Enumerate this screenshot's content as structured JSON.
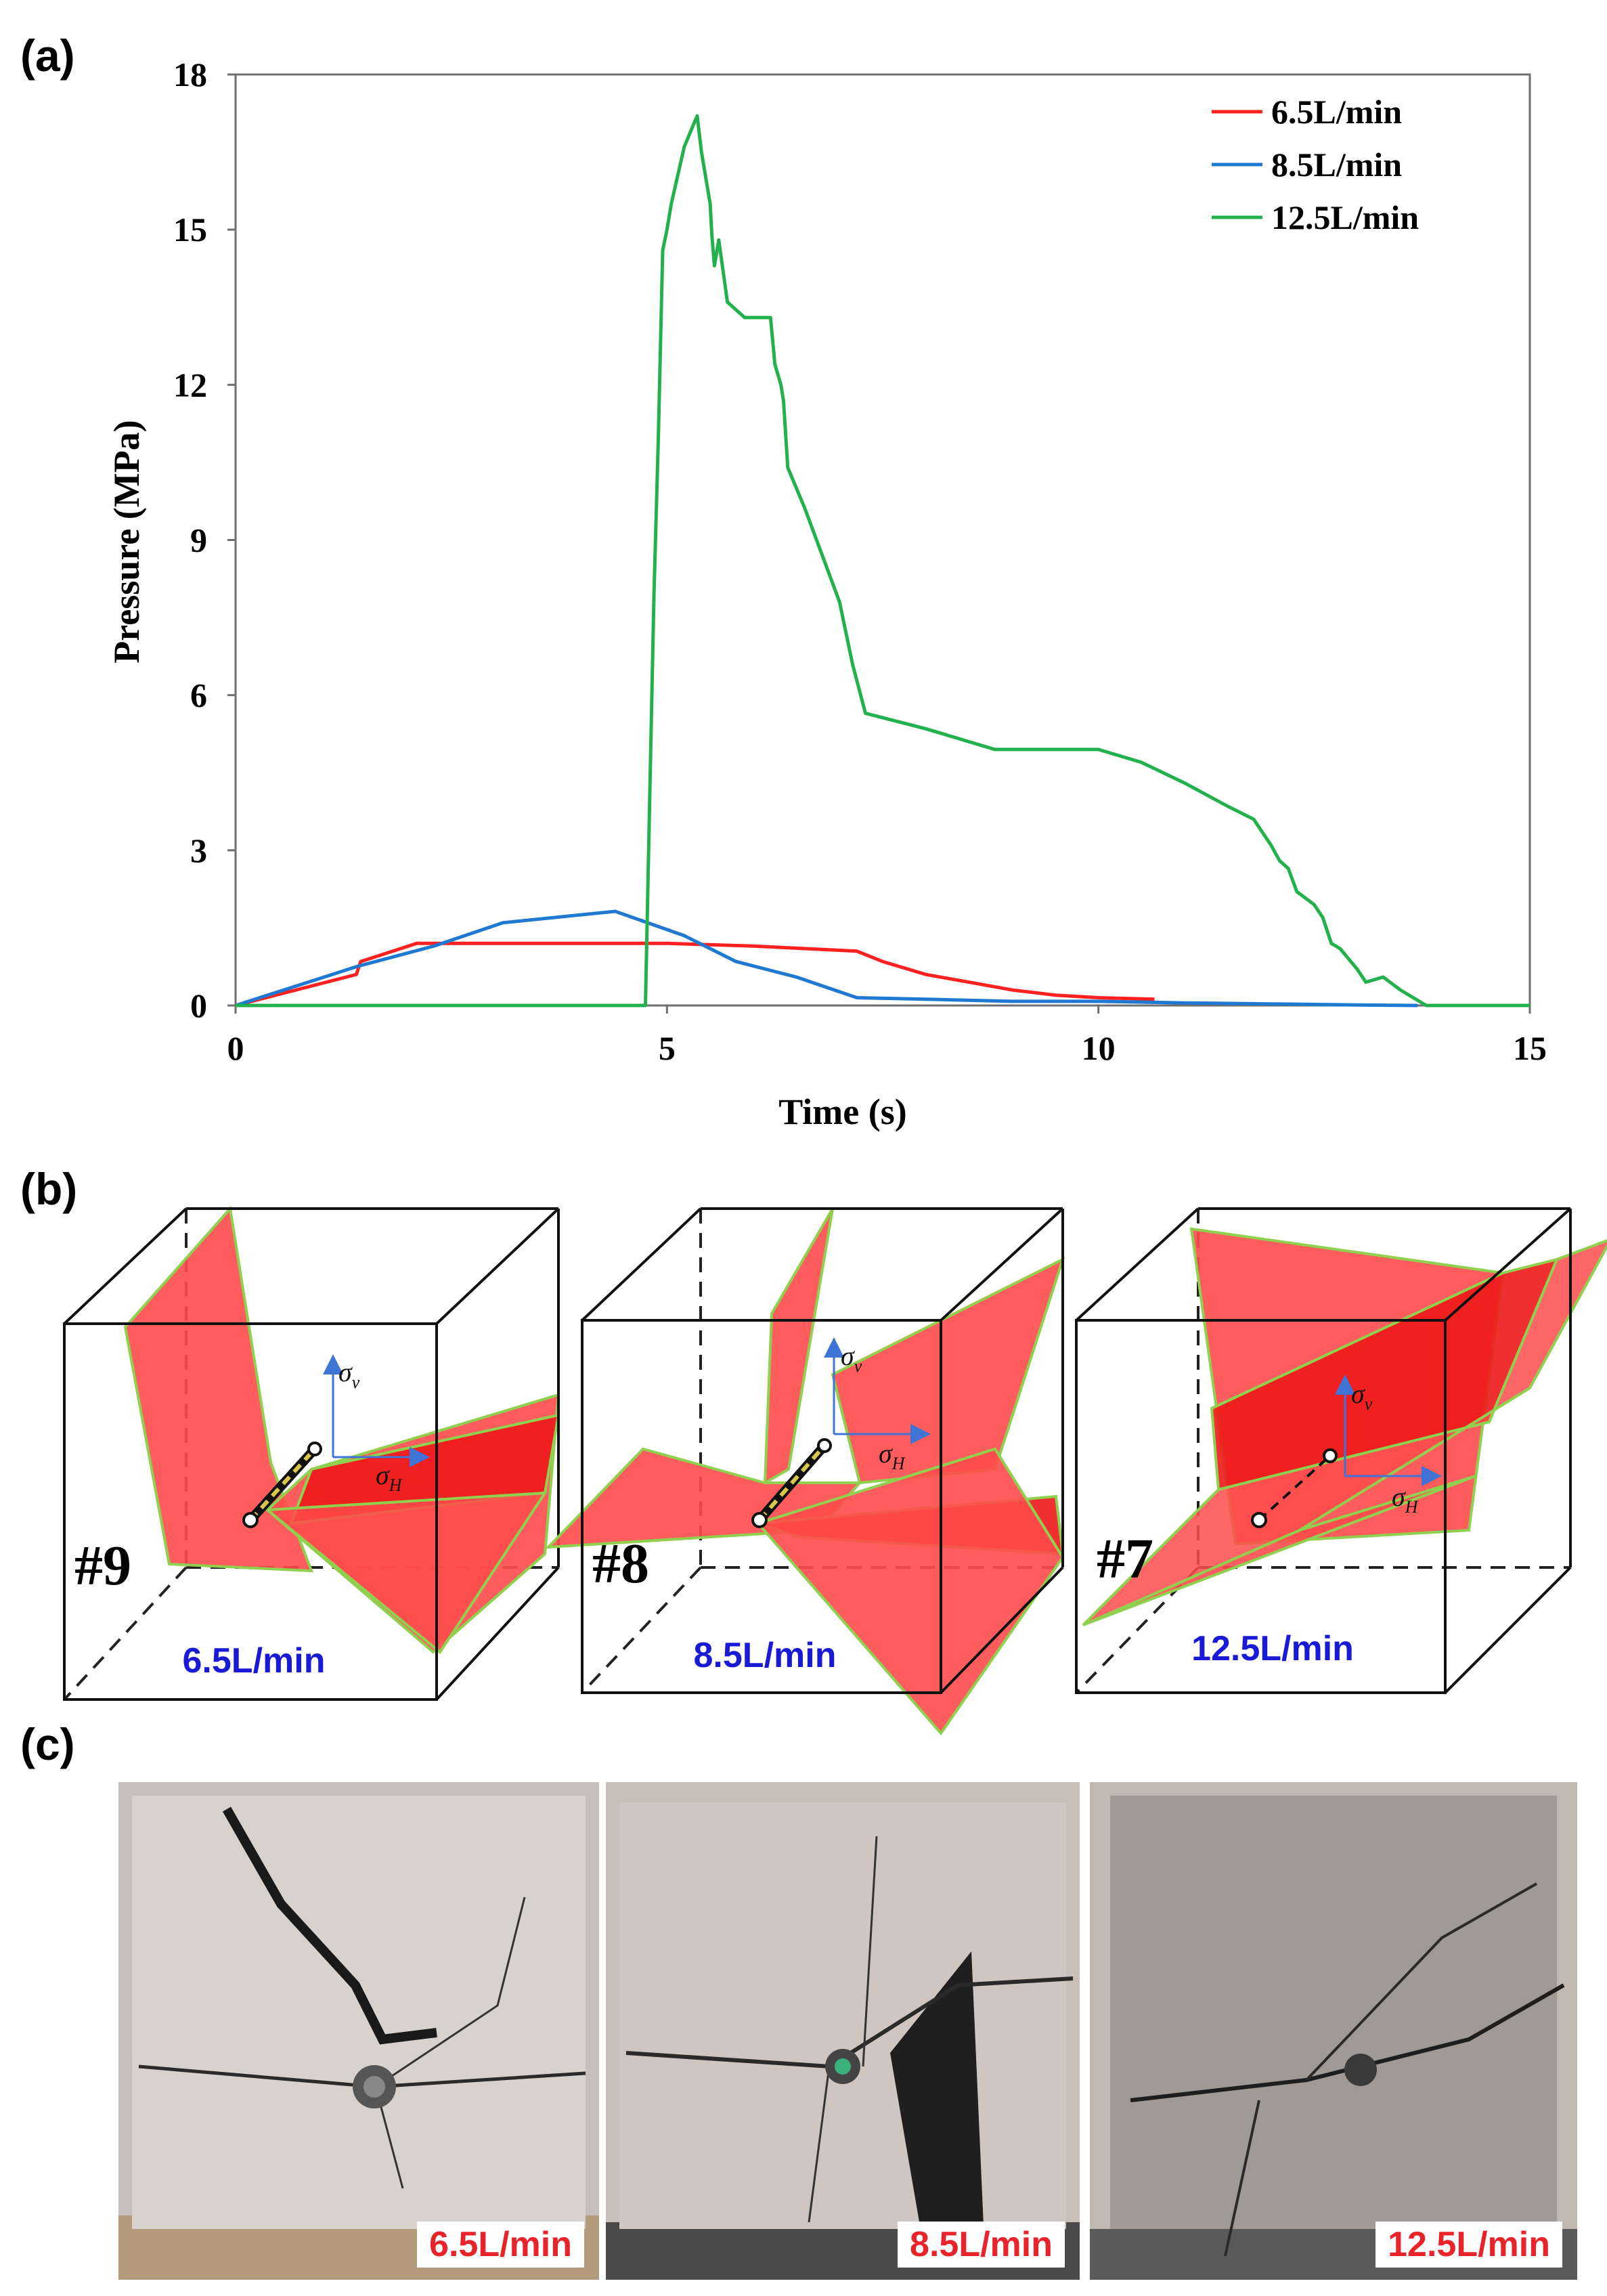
{
  "panels": {
    "a": "(a)",
    "b": "(b)",
    "c": "(c)"
  },
  "chart_data": {
    "type": "line",
    "xlabel": "Time (s)",
    "ylabel": "Pressure (MPa)",
    "xlim": [
      0,
      15
    ],
    "ylim": [
      0,
      18
    ],
    "xticks": [
      0,
      5,
      10,
      15
    ],
    "yticks": [
      0,
      3,
      6,
      9,
      12,
      15,
      18
    ],
    "legend_position": "top-right",
    "series": [
      {
        "name": "6.5L/min",
        "color": "#ff2020",
        "x": [
          0,
          1.4,
          1.45,
          2.1,
          3.0,
          4.5,
          5.0,
          6.0,
          7.2,
          7.5,
          8.0,
          8.5,
          9.0,
          9.5,
          10.0,
          10.65
        ],
        "y": [
          0,
          0.6,
          0.85,
          1.2,
          1.2,
          1.2,
          1.2,
          1.15,
          1.05,
          0.85,
          0.6,
          0.45,
          0.3,
          0.2,
          0.15,
          0.12
        ]
      },
      {
        "name": "8.5L/min",
        "color": "#1f78d1",
        "x": [
          0,
          1.4,
          2.3,
          3.1,
          4.4,
          5.2,
          5.8,
          6.5,
          7.2,
          8.0,
          9.0,
          10.0,
          11.0,
          12.0,
          13.0,
          13.7
        ],
        "y": [
          0,
          0.75,
          1.15,
          1.6,
          1.82,
          1.35,
          0.85,
          0.55,
          0.15,
          0.12,
          0.08,
          0.08,
          0.05,
          0.03,
          0.01,
          0
        ]
      },
      {
        "name": "12.5L/min",
        "color": "#22b14c",
        "x": [
          0,
          4.75,
          4.8,
          4.85,
          4.9,
          4.95,
          5.0,
          5.05,
          5.2,
          5.35,
          5.4,
          5.5,
          5.52,
          5.55,
          5.6,
          5.7,
          5.9,
          6.2,
          6.25,
          6.32,
          6.35,
          6.4,
          6.6,
          6.8,
          7.0,
          7.15,
          7.3,
          8.0,
          8.8,
          9.5,
          10.0,
          10.5,
          11.0,
          11.5,
          11.8,
          12.0,
          12.1,
          12.2,
          12.3,
          12.5,
          12.6,
          12.7,
          12.8,
          13.0,
          13.1,
          13.3,
          13.5,
          13.8,
          14.5,
          15.0
        ],
        "y": [
          0,
          0,
          4.0,
          8.0,
          11.0,
          14.6,
          15.0,
          15.5,
          16.6,
          17.2,
          16.5,
          15.5,
          14.9,
          14.3,
          14.8,
          13.6,
          13.3,
          13.3,
          12.4,
          12.0,
          11.7,
          10.4,
          9.6,
          8.7,
          7.8,
          6.6,
          5.65,
          5.35,
          4.95,
          4.95,
          4.95,
          4.7,
          4.3,
          3.85,
          3.6,
          3.1,
          2.8,
          2.65,
          2.2,
          1.95,
          1.7,
          1.2,
          1.1,
          0.7,
          0.45,
          0.55,
          0.3,
          0.0,
          0,
          0
        ]
      }
    ]
  },
  "cubes": [
    {
      "id": "#9",
      "rate": "6.5L/min",
      "sigma_v": "σ",
      "sigma_v_sub": "v",
      "sigma_h": "σ",
      "sigma_h_sub": "H"
    },
    {
      "id": "#8",
      "rate": "8.5L/min",
      "sigma_v": "σ",
      "sigma_v_sub": "v",
      "sigma_h": "σ",
      "sigma_h_sub": "H"
    },
    {
      "id": "#7",
      "rate": "12.5L/min",
      "sigma_v": "σ",
      "sigma_v_sub": "v",
      "sigma_h": "σ",
      "sigma_h_sub": "H"
    }
  ],
  "photos": [
    {
      "rate": "6.5L/min"
    },
    {
      "rate": "8.5L/min"
    },
    {
      "rate": "12.5L/min"
    }
  ],
  "colors": {
    "fracture": "#ff4b4b",
    "fracture_dark": "#ee1a1a",
    "fracture_edge": "#8fd14f",
    "axis_arrow": "#3f73d6",
    "rate_blue": "#1a1ad6",
    "rate_red": "#e8242a"
  }
}
